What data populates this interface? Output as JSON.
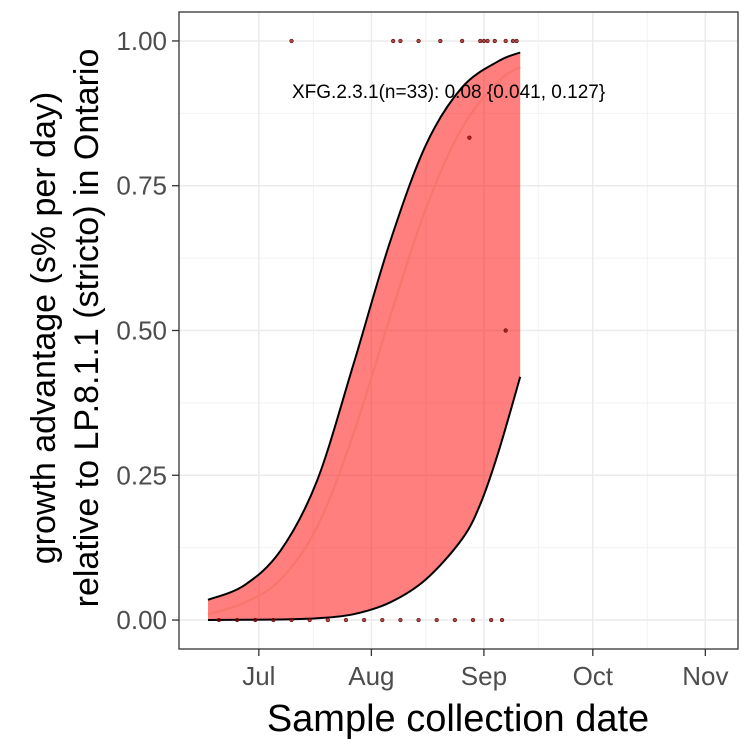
{
  "chart_data": {
    "type": "line",
    "title": "",
    "xlabel": "Sample collection date",
    "ylabel_lines": [
      "growth advantage (s% per day)",
      "relative to LP.8.1.1 (stricto) in Ontario"
    ],
    "x_ticks": [
      "Jul",
      "Aug",
      "Sep",
      "Oct",
      "Nov"
    ],
    "x_tick_dates": [
      "2025-07-01",
      "2025-08-01",
      "2025-09-01",
      "2025-10-01",
      "2025-11-01"
    ],
    "xlim": [
      "2025-06-09",
      "2025-11-10"
    ],
    "y_ticks": [
      "0.00",
      "0.25",
      "0.50",
      "0.75",
      "1.00"
    ],
    "ylim": [
      -0.05,
      1.05
    ],
    "grid": true,
    "annotation": "XFG.2.3.1(n=33): 0.08 {0.041, 0.127}",
    "colors": {
      "fit": "#f8766d",
      "ribbon": "#ff0000",
      "ribbon_opacity": 0.5,
      "band_edge": "#000000",
      "points": "#8b0000"
    },
    "series": [
      {
        "name": "fit",
        "x": [
          "2025-06-17",
          "2025-06-27",
          "2025-07-07",
          "2025-07-17",
          "2025-07-27",
          "2025-08-06",
          "2025-08-16",
          "2025-08-26",
          "2025-09-05",
          "2025-09-11"
        ],
        "y": [
          0.01,
          0.03,
          0.07,
          0.16,
          0.32,
          0.52,
          0.71,
          0.85,
          0.93,
          0.955
        ]
      },
      {
        "name": "ci_upper",
        "x": [
          "2025-06-17",
          "2025-06-27",
          "2025-07-07",
          "2025-07-17",
          "2025-07-27",
          "2025-08-06",
          "2025-08-16",
          "2025-08-26",
          "2025-09-05",
          "2025-09-11"
        ],
        "y": [
          0.035,
          0.06,
          0.12,
          0.24,
          0.44,
          0.65,
          0.82,
          0.92,
          0.965,
          0.98
        ]
      },
      {
        "name": "ci_lower",
        "x": [
          "2025-06-17",
          "2025-07-07",
          "2025-07-17",
          "2025-07-27",
          "2025-08-06",
          "2025-08-16",
          "2025-08-26",
          "2025-08-31",
          "2025-09-05",
          "2025-09-11"
        ],
        "y": [
          0.0,
          0.001,
          0.003,
          0.01,
          0.03,
          0.07,
          0.14,
          0.2,
          0.29,
          0.42
        ]
      }
    ],
    "points": [
      {
        "x": "2025-07-10",
        "y": 1.0
      },
      {
        "x": "2025-08-07",
        "y": 1.0
      },
      {
        "x": "2025-08-09",
        "y": 1.0
      },
      {
        "x": "2025-08-14",
        "y": 1.0
      },
      {
        "x": "2025-08-20",
        "y": 1.0
      },
      {
        "x": "2025-08-26",
        "y": 1.0
      },
      {
        "x": "2025-08-31",
        "y": 1.0
      },
      {
        "x": "2025-09-01",
        "y": 1.0
      },
      {
        "x": "2025-09-02",
        "y": 1.0
      },
      {
        "x": "2025-09-04",
        "y": 1.0
      },
      {
        "x": "2025-09-07",
        "y": 1.0
      },
      {
        "x": "2025-09-09",
        "y": 1.0
      },
      {
        "x": "2025-09-10",
        "y": 1.0
      },
      {
        "x": "2025-08-28",
        "y": 0.833
      },
      {
        "x": "2025-09-07",
        "y": 0.5
      },
      {
        "x": "2025-06-20",
        "y": 0.0
      },
      {
        "x": "2025-06-25",
        "y": 0.0
      },
      {
        "x": "2025-06-30",
        "y": 0.0
      },
      {
        "x": "2025-07-05",
        "y": 0.0
      },
      {
        "x": "2025-07-10",
        "y": 0.0
      },
      {
        "x": "2025-07-15",
        "y": 0.0
      },
      {
        "x": "2025-07-20",
        "y": 0.0
      },
      {
        "x": "2025-07-25",
        "y": 0.0
      },
      {
        "x": "2025-07-30",
        "y": 0.0
      },
      {
        "x": "2025-08-04",
        "y": 0.0
      },
      {
        "x": "2025-08-09",
        "y": 0.0
      },
      {
        "x": "2025-08-14",
        "y": 0.0
      },
      {
        "x": "2025-08-19",
        "y": 0.0
      },
      {
        "x": "2025-08-24",
        "y": 0.0
      },
      {
        "x": "2025-08-29",
        "y": 0.0
      },
      {
        "x": "2025-09-03",
        "y": 0.0
      },
      {
        "x": "2025-09-06",
        "y": 0.0
      }
    ]
  }
}
